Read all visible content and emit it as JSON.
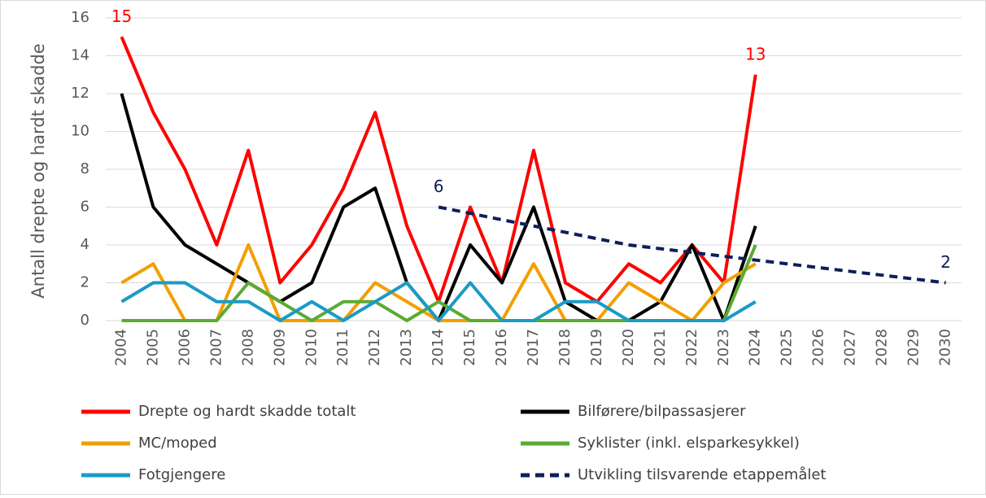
{
  "chart_data": {
    "type": "line",
    "y_label": "Antall drepte og hardt skadde",
    "categories": [
      "2004",
      "2005",
      "2006",
      "2007",
      "2008",
      "2009",
      "2010",
      "2011",
      "2012",
      "2013",
      "2014",
      "2015",
      "2016",
      "2017",
      "2018",
      "2019",
      "2020",
      "2021",
      "2022",
      "2023",
      "2024",
      "2025",
      "2026",
      "2027",
      "2028",
      "2029",
      "2030"
    ],
    "ylim": [
      0,
      16
    ],
    "yticks": [
      0,
      2,
      4,
      6,
      8,
      10,
      12,
      14,
      16
    ],
    "grid": true,
    "series": [
      {
        "name": "Drepte og hardt skadde totalt",
        "color": "#ff0000",
        "dashed": false,
        "labeled": [
          0,
          20
        ],
        "values": [
          15,
          11,
          8,
          4,
          9,
          2,
          4,
          7,
          11,
          5,
          1,
          6,
          2,
          9,
          2,
          1,
          3,
          2,
          4,
          2,
          13,
          null,
          null,
          null,
          null,
          null,
          null
        ]
      },
      {
        "name": "Bilførere/bilpassasjerer",
        "color": "#000000",
        "dashed": false,
        "labeled": [],
        "values": [
          12,
          6,
          4,
          3,
          2,
          1,
          2,
          6,
          7,
          2,
          0,
          4,
          2,
          6,
          1,
          0,
          0,
          1,
          4,
          0,
          5,
          null,
          null,
          null,
          null,
          null,
          null
        ]
      },
      {
        "name": "MC/moped",
        "color": "#f29f05",
        "dashed": false,
        "labeled": [],
        "values": [
          2,
          3,
          0,
          0,
          4,
          0,
          0,
          0,
          2,
          1,
          0,
          0,
          0,
          3,
          0,
          0,
          2,
          1,
          0,
          2,
          3,
          null,
          null,
          null,
          null,
          null,
          null
        ]
      },
      {
        "name": "Syklister (inkl. elsparkesykkel)",
        "color": "#5aab32",
        "dashed": false,
        "labeled": [],
        "values": [
          0,
          0,
          0,
          0,
          2,
          1,
          0,
          1,
          1,
          0,
          1,
          0,
          0,
          0,
          0,
          0,
          0,
          0,
          0,
          0,
          4,
          null,
          null,
          null,
          null,
          null,
          null
        ]
      },
      {
        "name": "Fotgjengere",
        "color": "#1a9bc6",
        "dashed": false,
        "labeled": [],
        "values": [
          1,
          2,
          2,
          1,
          1,
          0,
          1,
          0,
          1,
          2,
          0,
          2,
          0,
          0,
          1,
          1,
          0,
          0,
          0,
          0,
          1,
          null,
          null,
          null,
          null,
          null,
          null
        ]
      },
      {
        "name": "Utvikling tilsvarende etappemålet",
        "color": "#0c1f5a",
        "dashed": true,
        "labeled": [
          10,
          26
        ],
        "values": [
          null,
          null,
          null,
          null,
          null,
          null,
          null,
          null,
          null,
          null,
          6,
          5.67,
          5.33,
          5,
          4.67,
          4.33,
          4,
          3.8,
          3.6,
          3.4,
          3.2,
          3,
          2.8,
          2.6,
          2.4,
          2.2,
          2
        ]
      }
    ]
  }
}
